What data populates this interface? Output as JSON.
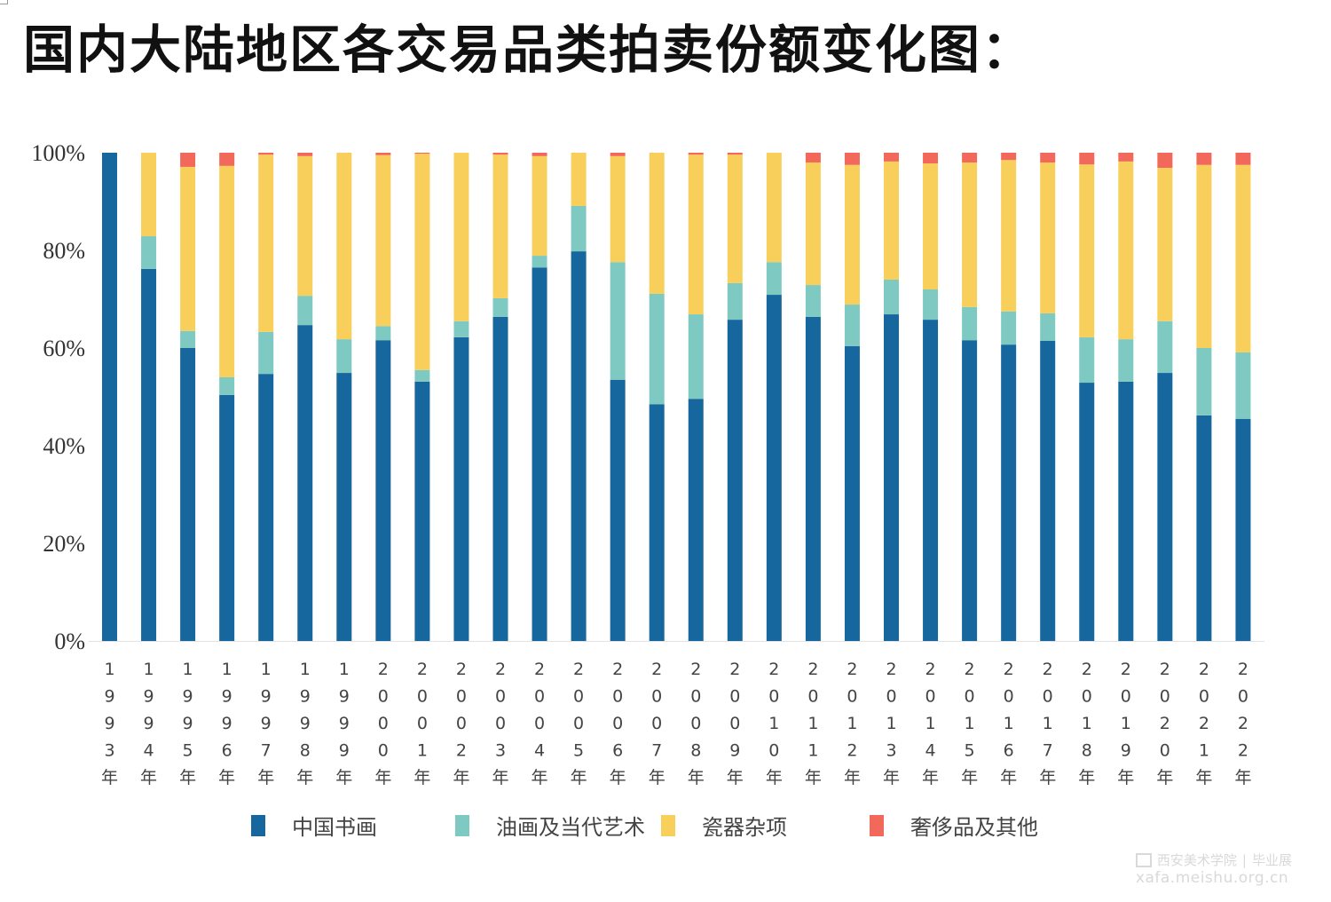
{
  "title": "国内大陆地区各交易品类拍卖份额变化图：",
  "legend": [
    {
      "label": "中国书画",
      "color": "#17679f"
    },
    {
      "label": "油画及当代艺术",
      "color": "#7ecac3"
    },
    {
      "label": "瓷器杂项",
      "color": "#f8cf5a"
    },
    {
      "label": "奢侈品及其他",
      "color": "#f2695c"
    }
  ],
  "watermark": {
    "line1": "西安美术学院",
    "line1b": "毕业展",
    "line2": "xafa.meishu.org.cn"
  },
  "chart_data": {
    "type": "bar",
    "stacked": "percent",
    "title": "国内大陆地区各交易品类拍卖份额变化图：",
    "xlabel": "",
    "ylabel": "",
    "ylim": [
      0,
      100
    ],
    "yticks": [
      "0%",
      "20%",
      "40%",
      "60%",
      "80%",
      "100%"
    ],
    "grid": false,
    "legend_position": "bottom",
    "categories": [
      "1993年",
      "1994年",
      "1995年",
      "1996年",
      "1997年",
      "1998年",
      "1999年",
      "2000年",
      "2001年",
      "2002年",
      "2003年",
      "2004年",
      "2005年",
      "2006年",
      "2007年",
      "2008年",
      "2009年",
      "2010年",
      "2011年",
      "2012年",
      "2013年",
      "2014年",
      "2015年",
      "2016年",
      "2017年",
      "2018年",
      "2019年",
      "2020年",
      "2021年",
      "2022年"
    ],
    "series": [
      {
        "name": "中国书画",
        "color": "#17679f",
        "values": [
          100,
          76.2,
          60.0,
          50.4,
          54.7,
          64.7,
          54.9,
          61.6,
          53.1,
          62.2,
          66.4,
          76.5,
          79.8,
          53.5,
          48.5,
          49.6,
          65.8,
          70.9,
          66.4,
          60.4,
          66.9,
          65.8,
          61.6,
          60.7,
          61.5,
          52.9,
          53.1,
          54.9,
          46.2,
          45.5
        ]
      },
      {
        "name": "油画及当代艺术",
        "color": "#7ecac3",
        "values": [
          0,
          6.7,
          3.5,
          3.6,
          8.6,
          6.0,
          6.9,
          2.9,
          2.4,
          3.3,
          3.8,
          2.4,
          9.3,
          24.1,
          22.6,
          17.3,
          7.5,
          6.7,
          6.5,
          8.5,
          7.1,
          6.2,
          6.8,
          6.8,
          5.6,
          9.3,
          8.7,
          10.6,
          13.8,
          13.6
        ]
      },
      {
        "name": "瓷器杂项",
        "color": "#f8cf5a",
        "values": [
          0,
          17.1,
          33.6,
          43.3,
          36.3,
          28.6,
          38.2,
          35.0,
          44.3,
          34.5,
          29.4,
          20.4,
          10.9,
          21.7,
          28.9,
          32.7,
          26.3,
          22.4,
          25.1,
          28.6,
          24.2,
          25.8,
          29.6,
          31.0,
          30.9,
          35.4,
          36.4,
          31.4,
          37.5,
          38.4
        ]
      },
      {
        "name": "奢侈品及其他",
        "color": "#f2695c",
        "values": [
          0,
          0,
          2.9,
          2.7,
          0.4,
          0.7,
          0,
          0.5,
          0.2,
          0,
          0.4,
          0.7,
          0,
          0.7,
          0,
          0.4,
          0.4,
          0,
          2.0,
          2.5,
          1.8,
          2.2,
          2.0,
          1.5,
          2.0,
          2.4,
          1.8,
          3.1,
          2.5,
          2.5
        ]
      }
    ]
  }
}
